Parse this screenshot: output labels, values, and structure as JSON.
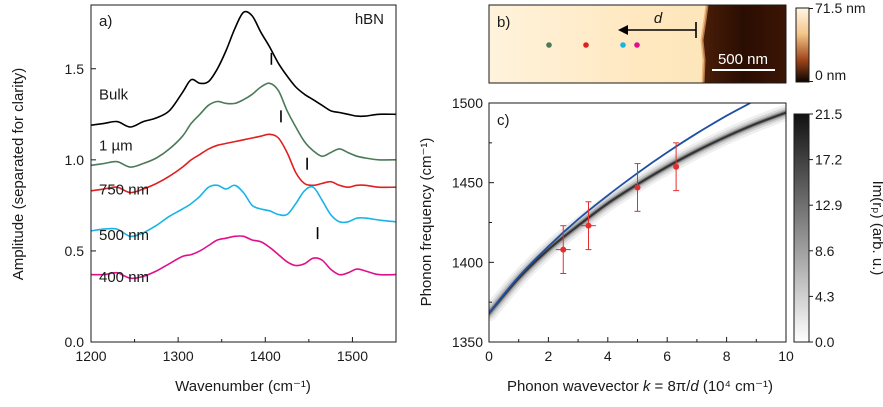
{
  "chart_data": [
    {
      "panel": "a)",
      "type": "line",
      "annotation": "hBN",
      "xlabel": "Wavenumber (cm⁻¹)",
      "ylabel": "Amplitude (separated for clarity)",
      "xlim": [
        1200,
        1550
      ],
      "ylim": [
        0,
        1.85
      ],
      "xticks": [
        "1200",
        "1300",
        "1400",
        "1500"
      ],
      "yticks": [
        "0.0",
        "0.5",
        "1.0",
        "1.5"
      ],
      "series": [
        {
          "name": "Bulk",
          "color": "#000000",
          "peak_marker": null,
          "x": [
            1200,
            1215,
            1230,
            1245,
            1260,
            1275,
            1290,
            1305,
            1315,
            1325,
            1335,
            1345,
            1355,
            1365,
            1375,
            1385,
            1395,
            1405,
            1415,
            1425,
            1435,
            1445,
            1455,
            1465,
            1475,
            1485,
            1495,
            1505,
            1515,
            1530,
            1550
          ],
          "y": [
            1.19,
            1.2,
            1.21,
            1.18,
            1.21,
            1.23,
            1.27,
            1.37,
            1.44,
            1.42,
            1.43,
            1.5,
            1.6,
            1.72,
            1.81,
            1.79,
            1.7,
            1.62,
            1.53,
            1.46,
            1.4,
            1.36,
            1.33,
            1.3,
            1.27,
            1.26,
            1.25,
            1.24,
            1.24,
            1.25,
            1.25
          ]
        },
        {
          "name": "1 µm",
          "color": "#4a7a58",
          "peak_marker": 1407,
          "x": [
            1200,
            1215,
            1230,
            1245,
            1260,
            1275,
            1290,
            1305,
            1315,
            1325,
            1335,
            1345,
            1355,
            1365,
            1375,
            1385,
            1395,
            1405,
            1415,
            1425,
            1435,
            1445,
            1455,
            1465,
            1475,
            1485,
            1495,
            1505,
            1515,
            1530,
            1550
          ],
          "y": [
            0.97,
            0.98,
            0.99,
            0.96,
            0.98,
            1.01,
            1.06,
            1.13,
            1.2,
            1.25,
            1.3,
            1.32,
            1.31,
            1.31,
            1.33,
            1.36,
            1.4,
            1.42,
            1.38,
            1.27,
            1.18,
            1.1,
            1.05,
            1.02,
            1.04,
            1.06,
            1.04,
            1.02,
            1.01,
            1.0,
            1.0
          ]
        },
        {
          "name": "750 nm",
          "color": "#e02020",
          "peak_marker": 1418,
          "x": [
            1200,
            1215,
            1230,
            1245,
            1260,
            1275,
            1290,
            1305,
            1315,
            1325,
            1335,
            1345,
            1355,
            1365,
            1375,
            1385,
            1395,
            1405,
            1415,
            1425,
            1435,
            1445,
            1455,
            1465,
            1475,
            1485,
            1495,
            1505,
            1515,
            1530,
            1550
          ],
          "y": [
            0.83,
            0.84,
            0.85,
            0.82,
            0.84,
            0.87,
            0.91,
            0.96,
            1.0,
            1.03,
            1.06,
            1.08,
            1.09,
            1.1,
            1.11,
            1.12,
            1.13,
            1.14,
            1.12,
            1.04,
            0.93,
            0.87,
            0.86,
            0.87,
            0.88,
            0.86,
            0.85,
            0.86,
            0.86,
            0.85,
            0.85
          ]
        },
        {
          "name": "500 nm",
          "color": "#17b4e6",
          "peak_marker": 1448,
          "x": [
            1200,
            1215,
            1230,
            1245,
            1260,
            1275,
            1290,
            1305,
            1315,
            1325,
            1335,
            1345,
            1355,
            1365,
            1375,
            1385,
            1395,
            1405,
            1415,
            1425,
            1435,
            1445,
            1455,
            1465,
            1475,
            1485,
            1495,
            1505,
            1515,
            1530,
            1550
          ],
          "y": [
            0.61,
            0.62,
            0.62,
            0.58,
            0.6,
            0.64,
            0.69,
            0.73,
            0.76,
            0.8,
            0.85,
            0.86,
            0.84,
            0.86,
            0.82,
            0.75,
            0.73,
            0.72,
            0.7,
            0.7,
            0.76,
            0.83,
            0.85,
            0.78,
            0.7,
            0.66,
            0.66,
            0.68,
            0.68,
            0.67,
            0.66
          ]
        },
        {
          "name": "400 nm",
          "color": "#e0108c",
          "peak_marker": 1460,
          "x": [
            1200,
            1215,
            1230,
            1245,
            1260,
            1275,
            1290,
            1305,
            1315,
            1325,
            1335,
            1345,
            1355,
            1365,
            1375,
            1385,
            1395,
            1405,
            1415,
            1425,
            1435,
            1445,
            1455,
            1465,
            1475,
            1485,
            1495,
            1505,
            1515,
            1530,
            1550
          ],
          "y": [
            0.37,
            0.37,
            0.38,
            0.35,
            0.36,
            0.39,
            0.43,
            0.47,
            0.48,
            0.5,
            0.53,
            0.56,
            0.57,
            0.58,
            0.58,
            0.56,
            0.55,
            0.52,
            0.48,
            0.44,
            0.42,
            0.43,
            0.46,
            0.45,
            0.4,
            0.37,
            0.38,
            0.4,
            0.39,
            0.37,
            0.37
          ]
        }
      ]
    },
    {
      "panel": "b)",
      "type": "heatmap",
      "label_d": "d",
      "scalebar": "500 nm",
      "colorbar_max": "71.5 nm",
      "colorbar_min": "0 nm",
      "dots": [
        {
          "color": "#4a7a58"
        },
        {
          "color": "#e02020"
        },
        {
          "color": "#17b4e6"
        },
        {
          "color": "#e0108c"
        }
      ]
    },
    {
      "panel": "c)",
      "type": "scatter",
      "xlabel_main": "Phonon wavevector ",
      "xlabel_k": "k",
      "xlabel_eq": " = 8π/",
      "xlabel_d": "d",
      "xlabel_unit": " (10⁴ cm⁻¹)",
      "ylabel": "Phonon frequency (cm⁻¹)",
      "xlim": [
        0,
        10
      ],
      "ylim": [
        1350,
        1500
      ],
      "xticks": [
        "0",
        "2",
        "4",
        "6",
        "8",
        "10"
      ],
      "yticks": [
        "1350",
        "1400",
        "1450",
        "1500"
      ],
      "points": [
        {
          "k": 2.5,
          "freq": 1408,
          "kerr": 0.25,
          "ferr": 15
        },
        {
          "k": 3.35,
          "freq": 1423,
          "kerr": 0.25,
          "ferr": 15
        },
        {
          "k": 5.0,
          "freq": 1447,
          "kerr": 0.0,
          "ferr": 15
        },
        {
          "k": 6.3,
          "freq": 1460,
          "kerr": 0.0,
          "ferr": 15
        }
      ],
      "theory_blue": {
        "x": [
          0,
          1,
          2,
          3,
          4,
          5,
          6,
          7,
          8,
          8.8
        ],
        "y": [
          1368,
          1391,
          1410,
          1427,
          1442,
          1456,
          1469,
          1481,
          1492,
          1500
        ]
      },
      "theory_band": {
        "x": [
          0,
          1,
          2,
          3,
          4,
          5,
          6,
          7,
          8,
          9,
          10
        ],
        "y": [
          1368,
          1390,
          1408,
          1423,
          1437,
          1449,
          1460,
          1470,
          1479,
          1487,
          1494
        ]
      },
      "colorbar_label": "Im(rₚ) (arb. u.)",
      "colorbar_ticks": [
        "0.0",
        "4.3",
        "8.6",
        "12.9",
        "17.2",
        "21.5"
      ]
    }
  ]
}
